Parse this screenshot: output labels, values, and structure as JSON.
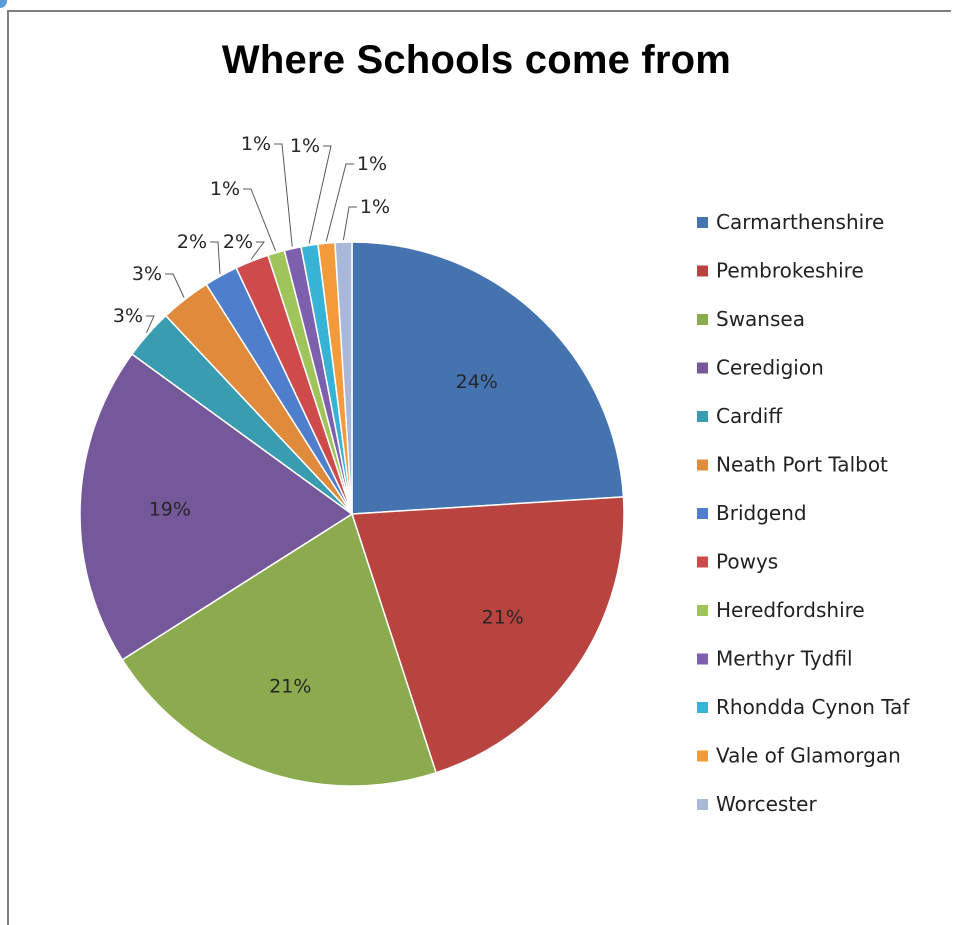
{
  "chart_data": {
    "type": "pie",
    "title": "Where Schools come from",
    "categories": [
      "Carmarthenshire",
      "Pembrokeshire",
      "Swansea",
      "Ceredigion",
      "Cardiff",
      "Neath Port Talbot",
      "Bridgend",
      "Powys",
      "Heredfordshire",
      "Merthyr Tydfil",
      "Rhondda Cynon Taf",
      "Vale of Glamorgan",
      "Worcester"
    ],
    "values": [
      24,
      21,
      21,
      19,
      3,
      3,
      2,
      2,
      1,
      1,
      1,
      1,
      1
    ],
    "labels": [
      "24%",
      "21%",
      "21%",
      "19%",
      "3%",
      "3%",
      "2%",
      "2%",
      "1%",
      "1%",
      "1%",
      "1%",
      "1%"
    ],
    "colors": [
      "#4573b0",
      "#b8433f",
      "#8cab4e",
      "#74589a",
      "#3a9cb0",
      "#e08a3c",
      "#4f7fcc",
      "#cf4b4b",
      "#9fc459",
      "#7c5fad",
      "#37b3d6",
      "#f39a3a",
      "#a9b8d8"
    ],
    "legend": "right"
  }
}
